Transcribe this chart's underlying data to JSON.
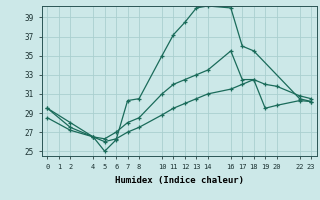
{
  "title": "",
  "xlabel": "Humidex (Indice chaleur)",
  "background_color": "#cce8e8",
  "grid_color": "#aacfcf",
  "line_color": "#1a6b5a",
  "xlim": [
    -0.5,
    23.5
  ],
  "ylim": [
    24.5,
    40.2
  ],
  "xticks": [
    0,
    1,
    2,
    4,
    5,
    6,
    7,
    8,
    10,
    11,
    12,
    13,
    14,
    16,
    17,
    18,
    19,
    20,
    22,
    23
  ],
  "yticks": [
    25,
    27,
    29,
    31,
    33,
    35,
    37,
    39
  ],
  "series": [
    {
      "x": [
        0,
        2,
        4,
        5,
        6,
        7,
        8,
        10,
        11,
        12,
        13,
        14,
        16,
        17,
        18,
        22,
        23
      ],
      "y": [
        29.5,
        28.0,
        26.5,
        25.0,
        26.2,
        30.3,
        30.5,
        35.0,
        37.2,
        38.5,
        40.0,
        40.2,
        40.0,
        36.0,
        35.5,
        30.5,
        30.2
      ]
    },
    {
      "x": [
        0,
        2,
        4,
        5,
        6,
        7,
        8,
        10,
        11,
        12,
        13,
        14,
        16,
        17,
        18,
        19,
        20,
        22,
        23
      ],
      "y": [
        29.5,
        27.5,
        26.5,
        26.3,
        27.0,
        28.0,
        28.5,
        31.0,
        32.0,
        32.5,
        33.0,
        33.5,
        35.5,
        32.5,
        32.5,
        32.0,
        31.8,
        30.8,
        30.5
      ]
    },
    {
      "x": [
        0,
        2,
        4,
        5,
        6,
        7,
        8,
        10,
        11,
        12,
        13,
        14,
        16,
        17,
        18,
        19,
        20,
        22,
        23
      ],
      "y": [
        28.5,
        27.2,
        26.5,
        26.0,
        26.3,
        27.0,
        27.5,
        28.8,
        29.5,
        30.0,
        30.5,
        31.0,
        31.5,
        32.0,
        32.5,
        29.5,
        29.8,
        30.3,
        30.2
      ]
    }
  ]
}
